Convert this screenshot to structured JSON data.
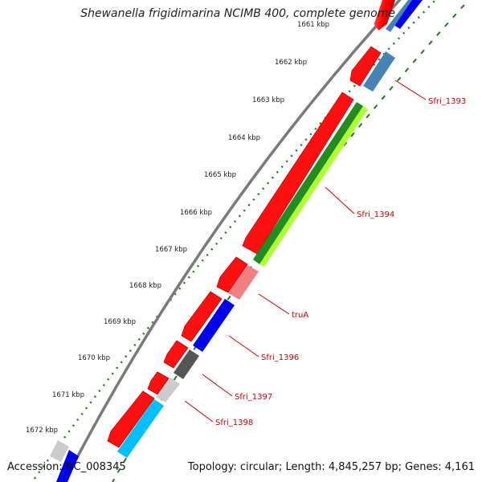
{
  "title": "Shewanella frigidimarina NCIMB 400, complete genome",
  "footer": {
    "accession": "Accession: NC_008345",
    "summary": "Topology: circular; Length: 4,845,257 bp; Genes: 4,161"
  },
  "kbp_ticks": [
    "1661 kbp",
    "1662 kbp",
    "1663 kbp",
    "1664 kbp",
    "1665 kbp",
    "1666 kbp",
    "1667 kbp",
    "1668 kbp",
    "1669 kbp",
    "1670 kbp",
    "1671 kbp",
    "1672 kbp"
  ],
  "gene_labels": [
    "Sfri_1393",
    "Sfri_1394",
    "truA",
    "Sfri_1396",
    "Sfri_1397",
    "Sfri_1398"
  ],
  "colors": {
    "forward_gene": "#ff0000",
    "tick_dots": "#1e7d1e",
    "label_red": "#cc0000",
    "cog_blue": "#0000ee",
    "cog_steel": "#4682b4",
    "cog_green": "#228b22",
    "cog_lime": "#adff2f",
    "cog_pink": "#f08080",
    "cog_darkgray": "#555555",
    "cog_lightgray": "#cccccc",
    "cog_cyan": "#00bfff"
  }
}
